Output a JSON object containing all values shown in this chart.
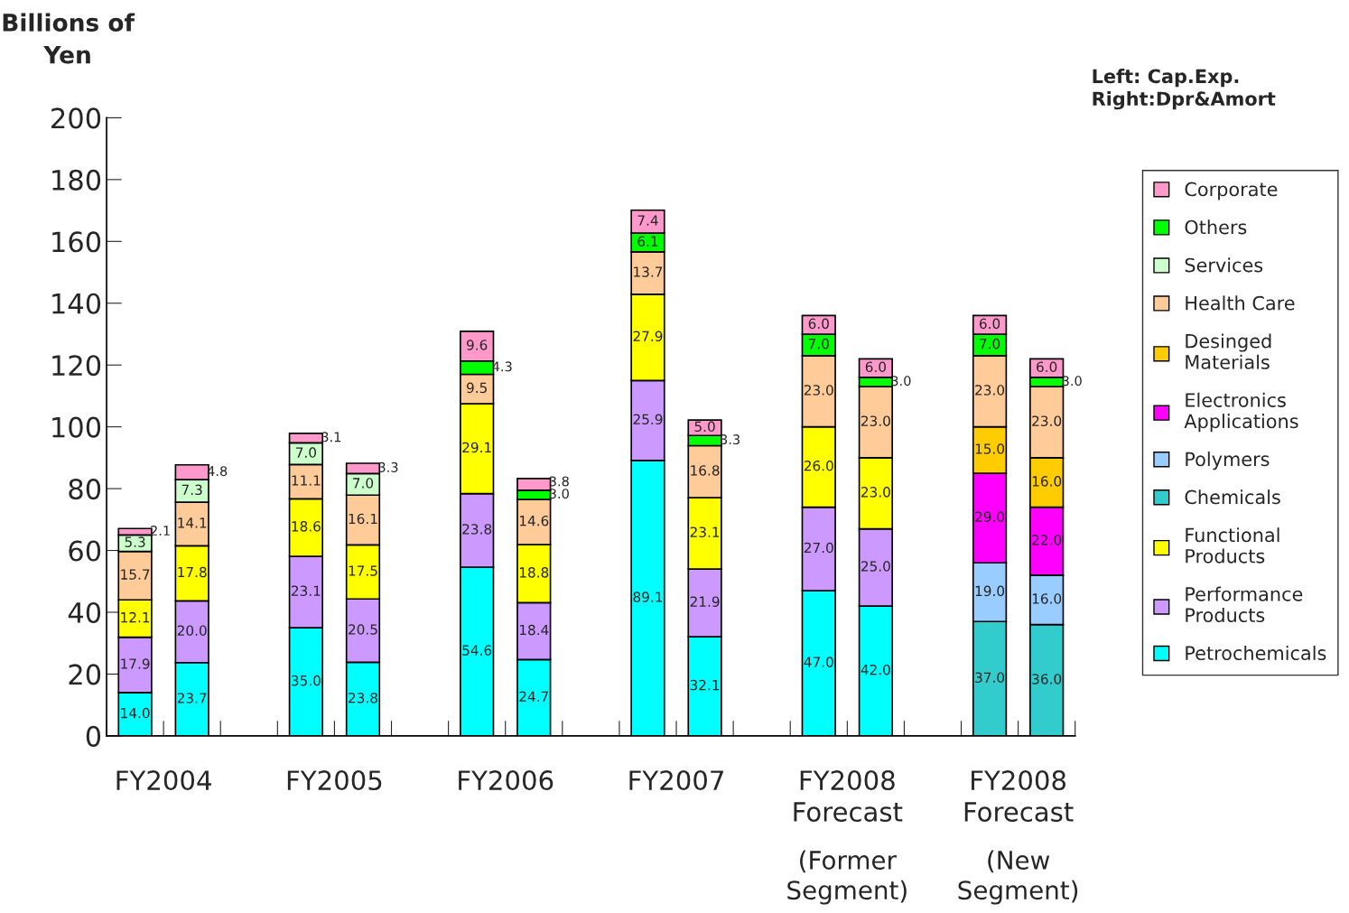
{
  "chart_data": {
    "type": "bar",
    "stacked": true,
    "ylabel": "Billions of\nYen",
    "categories": [
      null,
      null,
      null,
      null,
      null,
      null,
      null,
      null,
      null,
      null,
      null,
      null,
      null,
      null,
      null,
      null,
      null
    ],
    "ylim": [
      0,
      200
    ],
    "yticks": [
      0,
      20,
      40,
      60,
      80,
      100,
      120,
      140,
      160,
      180,
      200
    ],
    "grid": false,
    "legend": "right",
    "tick_labels": "y",
    "annotations": [
      "Left: Cap.Exp.\nRight:Dpr&Amort",
      "FY2004",
      "FY2005",
      "FY2006",
      "FY2007",
      "FY2008\nForecast",
      "FY2008\nForecast",
      "(Former\nSegment)",
      "(New\nSegment)"
    ],
    "series": [
      {
        "name": "Petrochemicals",
        "color": "#00ffff",
        "values": [
          14.0,
          23.7,
          null,
          35.0,
          23.8,
          null,
          54.6,
          24.7,
          null,
          89.1,
          32.1,
          null,
          47.0,
          42.0,
          null,
          null,
          null
        ],
        "value_labels": [
          "14.0",
          "23.7",
          null,
          "35.0",
          "23.8",
          null,
          "54.6",
          "24.7",
          null,
          "89.1",
          "32.1",
          null,
          "47.0",
          "42.0",
          null,
          null,
          null
        ]
      },
      {
        "name": "Performance\nProducts",
        "color": "#cc99ff",
        "values": [
          17.9,
          20.0,
          null,
          23.1,
          20.5,
          null,
          23.8,
          18.4,
          null,
          25.9,
          21.9,
          null,
          27.0,
          25.0,
          null,
          null,
          null
        ],
        "value_labels": [
          "17.9",
          "20.0",
          null,
          "23.1",
          "20.5",
          null,
          "23.8",
          "18.4",
          null,
          "25.9",
          "21.9",
          null,
          "27.0",
          "25.0",
          null,
          null,
          null
        ]
      },
      {
        "name": "Functional\nProducts",
        "color": "#ffff00",
        "values": [
          12.1,
          17.8,
          null,
          18.6,
          17.5,
          null,
          29.1,
          18.8,
          null,
          27.9,
          23.1,
          null,
          26.0,
          23.0,
          null,
          null,
          null
        ],
        "value_labels": [
          "12.1",
          "17.8",
          null,
          "18.6",
          "17.5",
          null,
          "29.1",
          "18.8",
          null,
          "27.9",
          "23.1",
          null,
          "26.0",
          "23.0",
          null,
          null,
          null
        ]
      },
      {
        "name": "Chemicals",
        "color": "#33cccc",
        "values": [
          null,
          null,
          null,
          null,
          null,
          null,
          null,
          null,
          null,
          null,
          null,
          null,
          null,
          null,
          null,
          37.0,
          36.0
        ],
        "value_labels": [
          null,
          null,
          null,
          null,
          null,
          null,
          null,
          null,
          null,
          null,
          null,
          null,
          null,
          null,
          null,
          "37.0",
          "36.0"
        ]
      },
      {
        "name": "Polymers",
        "color": "#99ccff",
        "values": [
          null,
          null,
          null,
          null,
          null,
          null,
          null,
          null,
          null,
          null,
          null,
          null,
          null,
          null,
          null,
          19.0,
          16.0
        ],
        "value_labels": [
          null,
          null,
          null,
          null,
          null,
          null,
          null,
          null,
          null,
          null,
          null,
          null,
          null,
          null,
          null,
          "19.0",
          "16.0"
        ]
      },
      {
        "name": "Electronics\nApplications",
        "color": "#ff00ff",
        "values": [
          null,
          null,
          null,
          null,
          null,
          null,
          null,
          null,
          null,
          null,
          null,
          null,
          null,
          null,
          null,
          29.0,
          22.0
        ],
        "value_labels": [
          null,
          null,
          null,
          null,
          null,
          null,
          null,
          null,
          null,
          null,
          null,
          null,
          null,
          null,
          null,
          "29.0",
          "22.0"
        ]
      },
      {
        "name": "Desinged\nMaterials",
        "color": "#ffcc00",
        "values": [
          null,
          null,
          null,
          null,
          null,
          null,
          null,
          null,
          null,
          null,
          null,
          null,
          null,
          null,
          null,
          15.0,
          16.0
        ],
        "value_labels": [
          null,
          null,
          null,
          null,
          null,
          null,
          null,
          null,
          null,
          null,
          null,
          null,
          null,
          null,
          null,
          "15.0",
          "16.0"
        ]
      },
      {
        "name": "Health Care",
        "color": "#ffcc99",
        "values": [
          15.7,
          14.1,
          null,
          11.1,
          16.1,
          null,
          9.5,
          14.6,
          null,
          13.7,
          16.8,
          null,
          23.0,
          23.0,
          null,
          23.0,
          23.0
        ],
        "value_labels": [
          "15.7",
          "14.1",
          null,
          "11.1",
          "16.1",
          null,
          "9.5",
          "14.6",
          null,
          "13.7",
          "16.8",
          null,
          "23.0",
          "23.0",
          null,
          "23.0",
          "23.0"
        ]
      },
      {
        "name": "Services",
        "color": "#ccffcc",
        "values": [
          5.3,
          7.3,
          null,
          7.0,
          7.0,
          null,
          null,
          null,
          null,
          null,
          null,
          null,
          null,
          null,
          null,
          null,
          null
        ],
        "value_labels": [
          "5.3",
          "7.3",
          null,
          "7.0",
          "7.0",
          null,
          null,
          null,
          null,
          null,
          null,
          null,
          null,
          null,
          null,
          null,
          null
        ]
      },
      {
        "name": "Others",
        "color": "#00ff00",
        "values": [
          null,
          null,
          null,
          null,
          null,
          null,
          4.3,
          3.0,
          null,
          6.1,
          3.3,
          null,
          7.0,
          3.0,
          null,
          7.0,
          3.0
        ],
        "value_labels": [
          null,
          null,
          null,
          null,
          null,
          null,
          "4.3",
          "3.0",
          null,
          "6.1",
          "3.3",
          null,
          "7.0",
          "3.0",
          null,
          "7.0",
          "3.0"
        ]
      },
      {
        "name": "Corporate",
        "color": "#ff99cc",
        "values": [
          2.1,
          4.8,
          null,
          3.1,
          3.3,
          null,
          9.6,
          3.8,
          null,
          7.4,
          5.0,
          null,
          6.0,
          6.0,
          null,
          6.0,
          6.0
        ],
        "value_labels": [
          "2.1",
          "4.8",
          null,
          "3.1",
          "3.3",
          null,
          "9.6",
          "3.8",
          null,
          "7.4",
          "5.0",
          null,
          "6.0",
          "6.0",
          null,
          "6.0",
          "6.0"
        ]
      }
    ]
  }
}
